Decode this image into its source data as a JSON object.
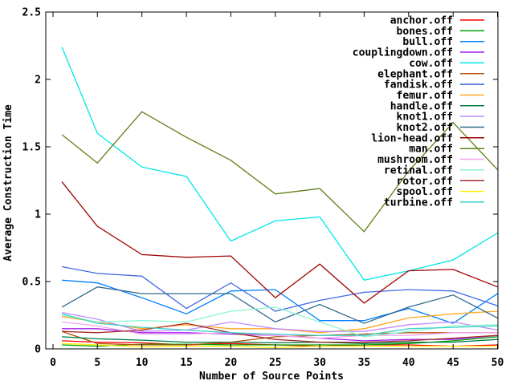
{
  "chart_data": {
    "type": "line",
    "title": "",
    "xlabel": "Number of Source Points",
    "ylabel": "Average Construction Time",
    "xlim": [
      0,
      50
    ],
    "ylim": [
      0,
      2.5
    ],
    "xticks": [
      0,
      5,
      10,
      15,
      20,
      25,
      30,
      35,
      40,
      45,
      50
    ],
    "xtick_labels": [
      "0",
      "5",
      "10",
      "15",
      "20",
      "25",
      "30",
      "35",
      "40",
      "45",
      "50"
    ],
    "yticks": [
      0,
      0.5,
      1,
      1.5,
      2,
      2.5
    ],
    "ytick_labels": [
      "0",
      "0.5",
      "1",
      "1.5",
      "2",
      "2.5"
    ],
    "grid": false,
    "legend_position": "top-right-inside-no-box",
    "background": "#ffffff",
    "axis_color": "#000000",
    "x": [
      1,
      5,
      10,
      15,
      20,
      25,
      30,
      35,
      40,
      45,
      50
    ],
    "series": [
      {
        "name": "anchor.off",
        "color": "#ff0000",
        "values": [
          0.06,
          0.05,
          0.045,
          0.03,
          0.04,
          0.03,
          0.02,
          0.03,
          0.03,
          0.02,
          0.03
        ]
      },
      {
        "name": "bones.off",
        "color": "#00a000",
        "values": [
          0.03,
          0.02,
          0.035,
          0.035,
          0.03,
          0.03,
          0.03,
          0.03,
          0.04,
          0.06,
          0.09
        ]
      },
      {
        "name": "bull.off",
        "color": "#0080ff",
        "values": [
          0.51,
          0.49,
          0.38,
          0.26,
          0.43,
          0.44,
          0.21,
          0.21,
          0.3,
          0.19,
          0.41
        ]
      },
      {
        "name": "couplingdown.off",
        "color": "#a020f0",
        "values": [
          0.15,
          0.15,
          0.12,
          0.12,
          0.11,
          0.1,
          0.08,
          0.06,
          0.07,
          0.07,
          0.1
        ]
      },
      {
        "name": "cow.off",
        "color": "#00e5e5",
        "values": [
          2.24,
          1.6,
          1.35,
          1.28,
          0.8,
          0.95,
          0.98,
          0.51,
          0.58,
          0.66,
          0.86
        ]
      },
      {
        "name": "elephant.off",
        "color": "#b4520a",
        "values": [
          0.13,
          0.04,
          0.03,
          0.03,
          0.05,
          0.09,
          0.1,
          0.11,
          0.12,
          0.12,
          0.12
        ]
      },
      {
        "name": "fandisk.off",
        "color": "#4169e1",
        "values": [
          0.61,
          0.56,
          0.54,
          0.3,
          0.49,
          0.28,
          0.36,
          0.42,
          0.44,
          0.43,
          0.32
        ]
      },
      {
        "name": "femur.off",
        "color": "#ffa81e",
        "values": [
          0.24,
          0.2,
          0.15,
          0.18,
          0.15,
          0.15,
          0.12,
          0.15,
          0.23,
          0.26,
          0.28
        ]
      },
      {
        "name": "handle.off",
        "color": "#007a45",
        "values": [
          0.09,
          0.075,
          0.065,
          0.05,
          0.05,
          0.045,
          0.05,
          0.04,
          0.05,
          0.05,
          0.07
        ]
      },
      {
        "name": "knot1.off",
        "color": "#c38aff",
        "values": [
          0.27,
          0.22,
          0.13,
          0.14,
          0.2,
          0.15,
          0.13,
          0.13,
          0.18,
          0.2,
          0.14
        ]
      },
      {
        "name": "knot2.off",
        "color": "#31688c",
        "values": [
          0.31,
          0.46,
          0.41,
          0.41,
          0.41,
          0.2,
          0.33,
          0.19,
          0.31,
          0.4,
          0.23
        ]
      },
      {
        "name": "lion-head.off",
        "color": "#a00000",
        "values": [
          1.24,
          0.91,
          0.7,
          0.68,
          0.69,
          0.38,
          0.63,
          0.34,
          0.58,
          0.59,
          0.46
        ]
      },
      {
        "name": "man.off",
        "color": "#5f7f16",
        "values": [
          1.59,
          1.38,
          1.76,
          1.57,
          1.4,
          1.15,
          1.19,
          0.87,
          1.32,
          1.68,
          1.33
        ]
      },
      {
        "name": "mushroom.off",
        "color": "#f2a3f2",
        "values": [
          0.2,
          0.17,
          0.11,
          0.11,
          0.12,
          0.1,
          0.08,
          0.1,
          0.1,
          0.12,
          0.12
        ]
      },
      {
        "name": "retinal.off",
        "color": "#8cf5d3",
        "values": [
          0.25,
          0.2,
          0.21,
          0.2,
          0.28,
          0.31,
          0.2,
          0.09,
          0.13,
          0.17,
          0.18
        ]
      },
      {
        "name": "rotor.off",
        "color": "#a52a2a",
        "values": [
          0.13,
          0.12,
          0.14,
          0.19,
          0.12,
          0.07,
          0.05,
          0.05,
          0.06,
          0.08,
          0.1
        ]
      },
      {
        "name": "spool.off",
        "color": "#ffee00",
        "values": [
          0.04,
          0.03,
          0.015,
          0.02,
          0.02,
          0.01,
          0.02,
          0.02,
          0.02,
          0.02,
          0.02
        ]
      },
      {
        "name": "turbine.off",
        "color": "#3fd2c7",
        "values": [
          0.26,
          0.19,
          0.16,
          0.14,
          0.12,
          0.11,
          0.1,
          0.1,
          0.15,
          0.16,
          0.17
        ]
      }
    ]
  }
}
